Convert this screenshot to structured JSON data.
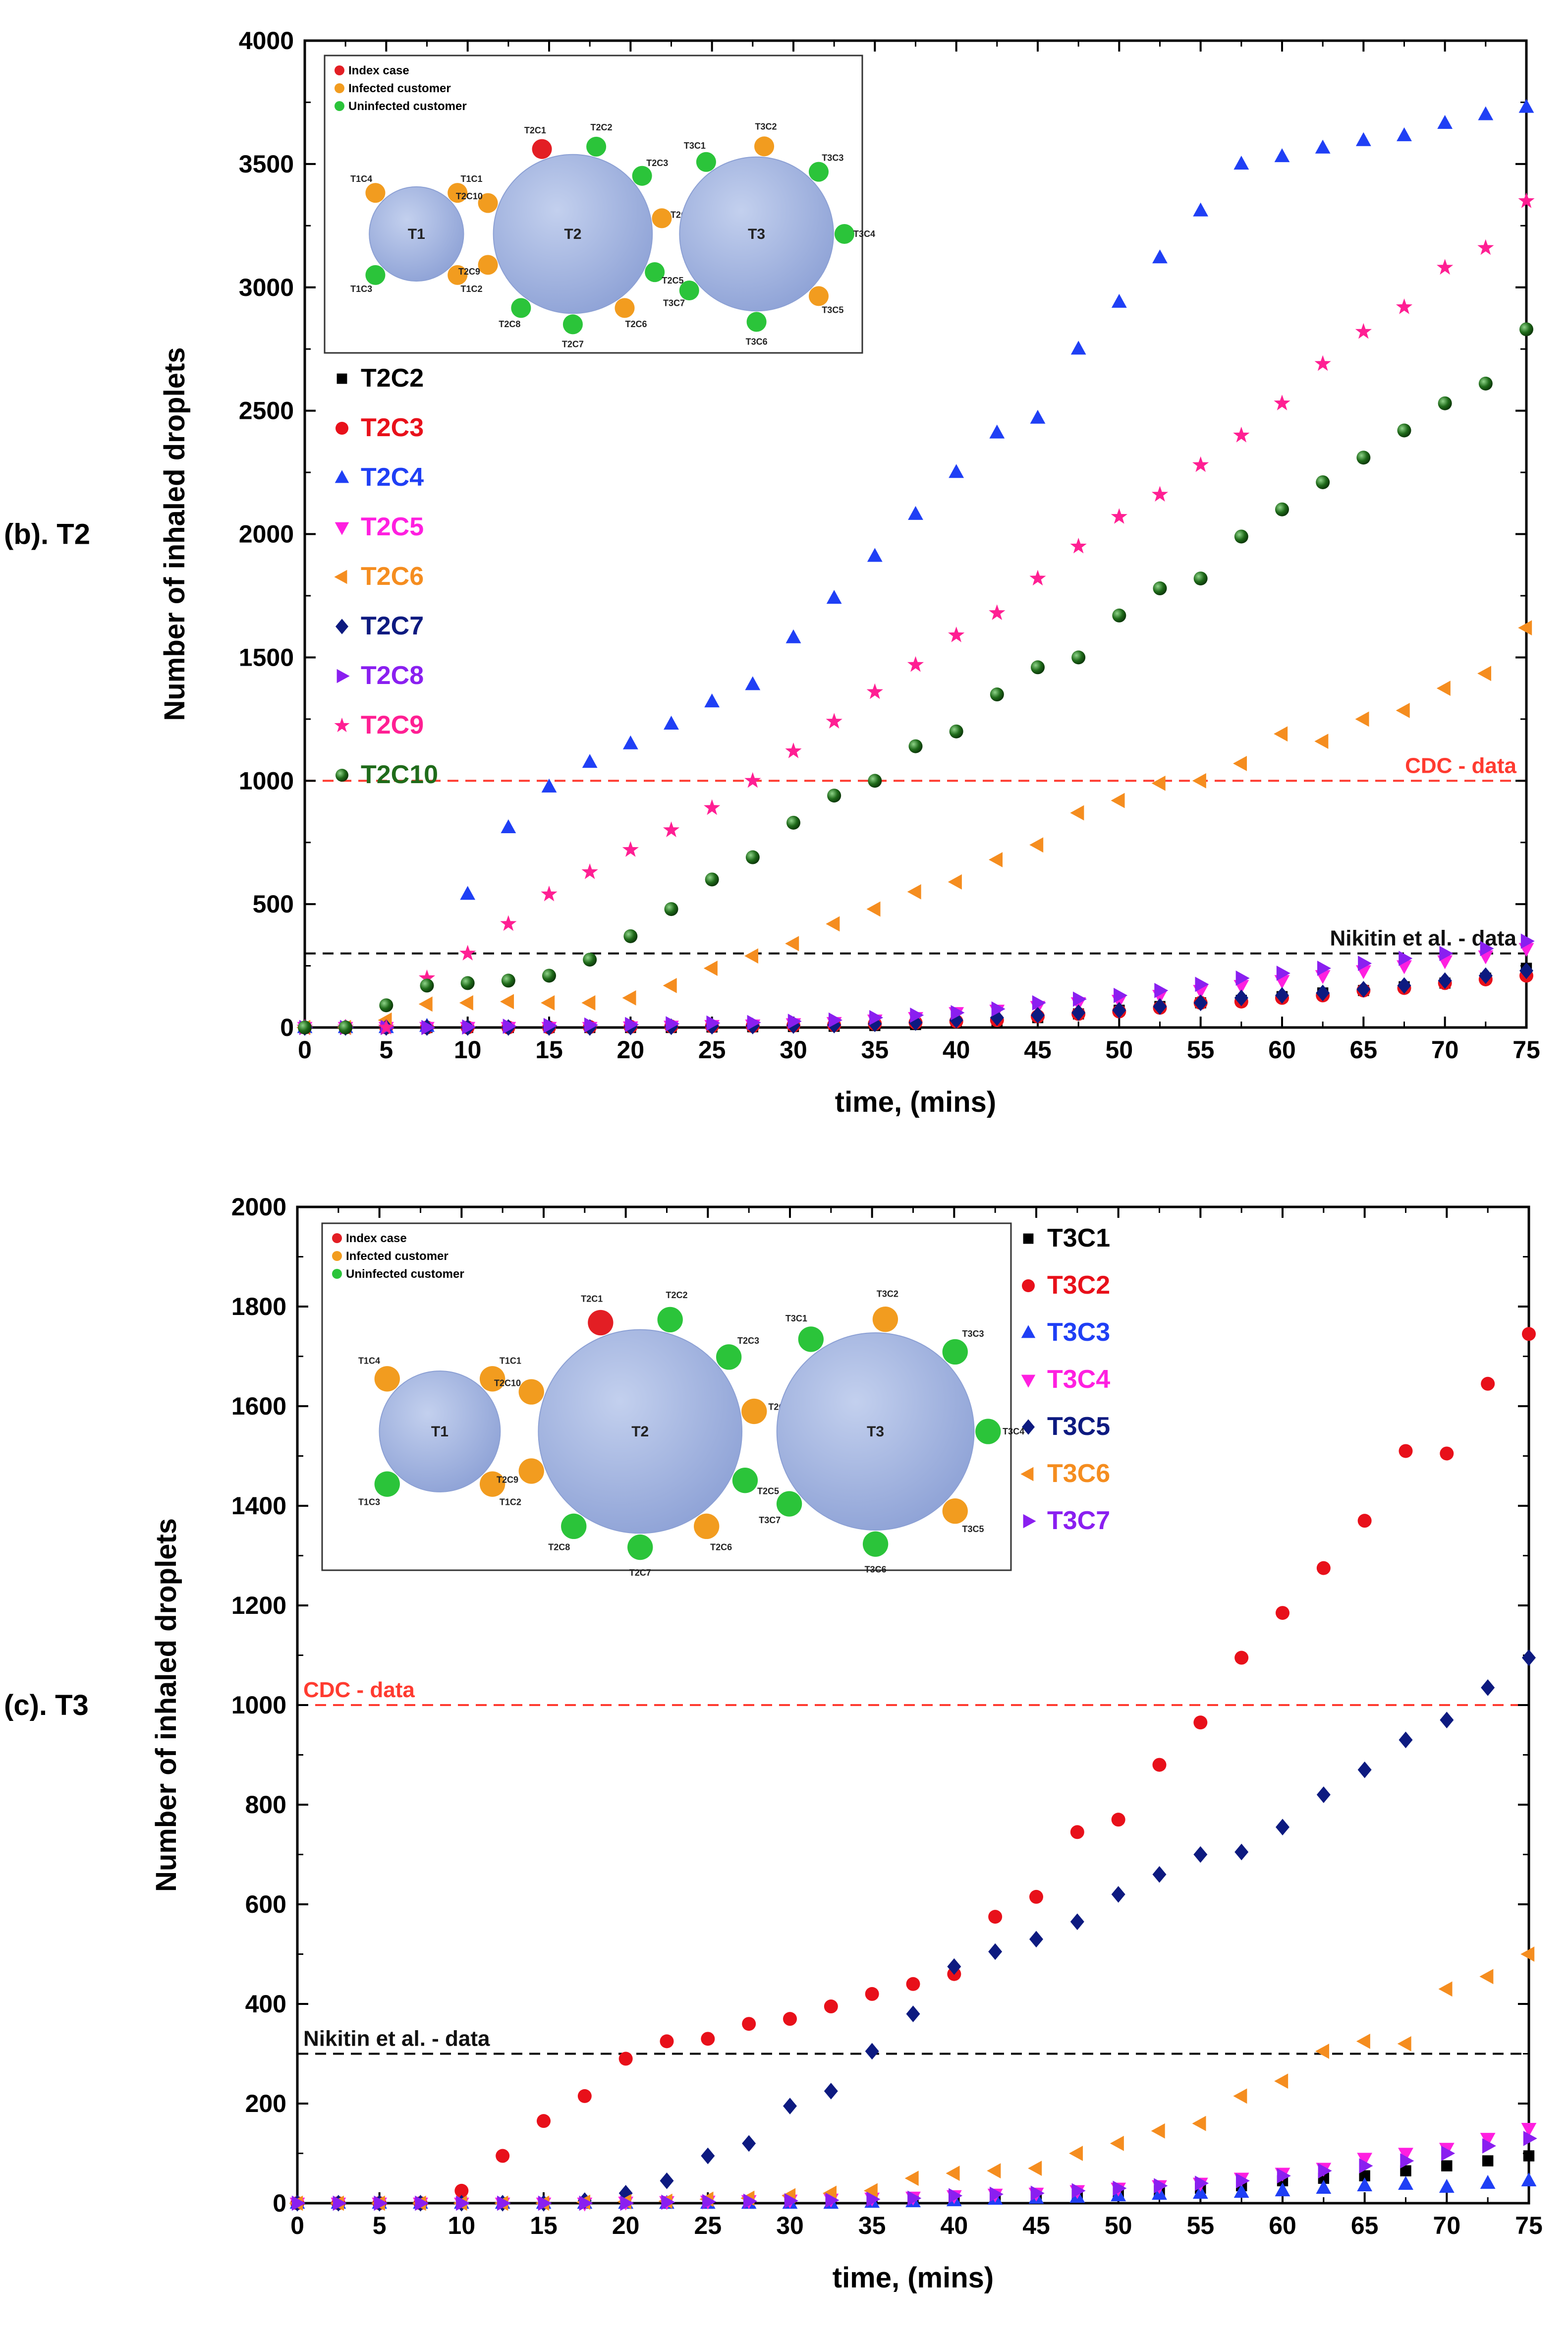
{
  "figure": {
    "xlabel": "time, (mins)",
    "ylabel": "Number of inhaled droplets"
  },
  "inset": {
    "legend": [
      {
        "label": "Index case",
        "color": "#e31e24"
      },
      {
        "label": "Infected customer",
        "color": "#f29c1f"
      },
      {
        "label": "Uninfected customer",
        "color": "#2bc43a"
      }
    ],
    "tables": [
      {
        "name": "T1",
        "seats": [
          {
            "label": "T1C4",
            "status": "infected"
          },
          {
            "label": "T1C1",
            "status": "infected"
          },
          {
            "label": "T1C3",
            "status": "uninfected"
          },
          {
            "label": "T1C2",
            "status": "infected"
          }
        ]
      },
      {
        "name": "T2",
        "seats": [
          {
            "label": "T2C1",
            "status": "index"
          },
          {
            "label": "T2C2",
            "status": "uninfected"
          },
          {
            "label": "T2C3",
            "status": "uninfected"
          },
          {
            "label": "T2C4",
            "status": "infected"
          },
          {
            "label": "T2C5",
            "status": "uninfected"
          },
          {
            "label": "T2C6",
            "status": "infected"
          },
          {
            "label": "T2C7",
            "status": "uninfected"
          },
          {
            "label": "T2C8",
            "status": "uninfected"
          },
          {
            "label": "T2C9",
            "status": "infected"
          },
          {
            "label": "T2C10",
            "status": "infected"
          }
        ]
      },
      {
        "name": "T3",
        "seats": [
          {
            "label": "T3C1",
            "status": "uninfected"
          },
          {
            "label": "T3C2",
            "status": "infected"
          },
          {
            "label": "T3C3",
            "status": "uninfected"
          },
          {
            "label": "T3C4",
            "status": "uninfected"
          },
          {
            "label": "T3C5",
            "status": "infected"
          },
          {
            "label": "T3C6",
            "status": "uninfected"
          },
          {
            "label": "T3C7",
            "status": "uninfected"
          }
        ]
      }
    ]
  },
  "chart_data": [
    {
      "type": "scatter",
      "panel_label": "(b). T2",
      "xlabel": "time, (mins)",
      "ylabel": "Number of inhaled droplets",
      "xlim": [
        0,
        75
      ],
      "ylim": [
        0,
        4000
      ],
      "xticks": [
        0,
        5,
        10,
        15,
        20,
        25,
        30,
        35,
        40,
        45,
        50,
        55,
        60,
        65,
        70,
        75
      ],
      "yticks": [
        0,
        500,
        1000,
        1500,
        2000,
        2500,
        3000,
        3500,
        4000
      ],
      "x": [
        0,
        2.5,
        5,
        7.5,
        10,
        12.5,
        15,
        17.5,
        20,
        22.5,
        25,
        27.5,
        30,
        32.5,
        35,
        37.5,
        40,
        42.5,
        45,
        47.5,
        50,
        52.5,
        55,
        57.5,
        60,
        62.5,
        65,
        67.5,
        70,
        72.5,
        75
      ],
      "reference_lines": [
        {
          "label": "CDC - data",
          "y": 1000,
          "color": "#ff3b30",
          "label_position": "right"
        },
        {
          "label": "Nikitin et al. - data",
          "y": 300,
          "color": "#000000",
          "label_position": "right"
        }
      ],
      "series": [
        {
          "name": "T2C2",
          "color": "#000000",
          "marker": "square",
          "values": [
            0,
            0,
            0,
            0,
            0,
            0,
            0,
            0,
            0,
            0,
            2,
            3,
            4,
            5,
            8,
            12,
            18,
            25,
            40,
            55,
            70,
            85,
            100,
            110,
            125,
            140,
            150,
            165,
            180,
            200,
            240
          ]
        },
        {
          "name": "T2C3",
          "color": "#e8101a",
          "marker": "circle",
          "values": [
            0,
            0,
            0,
            0,
            0,
            0,
            0,
            2,
            3,
            4,
            5,
            6,
            8,
            10,
            15,
            20,
            25,
            30,
            45,
            55,
            65,
            80,
            100,
            105,
            120,
            130,
            150,
            160,
            180,
            195,
            210
          ]
        },
        {
          "name": "T2C4",
          "color": "#1f3ff5",
          "marker": "triangle-up",
          "values": [
            0,
            0,
            0,
            5,
            540,
            810,
            975,
            1075,
            1150,
            1230,
            1320,
            1390,
            1580,
            1740,
            1910,
            2080,
            2250,
            2410,
            2470,
            2750,
            2940,
            3120,
            3310,
            3500,
            3530,
            3565,
            3595,
            3615,
            3665,
            3700,
            3730
          ]
        },
        {
          "name": "T2C5",
          "color": "#ff1fe0",
          "marker": "triangle-down",
          "values": [
            0,
            0,
            0,
            0,
            0,
            0,
            0,
            0,
            2,
            5,
            8,
            10,
            15,
            20,
            30,
            40,
            60,
            70,
            85,
            100,
            110,
            130,
            150,
            170,
            190,
            210,
            230,
            250,
            270,
            290,
            320
          ]
        },
        {
          "name": "T2C6",
          "color": "#f58d1f",
          "marker": "triangle-left",
          "values": [
            0,
            0,
            30,
            95,
            100,
            105,
            100,
            100,
            120,
            170,
            240,
            290,
            340,
            420,
            480,
            550,
            590,
            680,
            740,
            870,
            920,
            990,
            1000,
            1070,
            1190,
            1160,
            1250,
            1285,
            1375,
            1435,
            1620
          ]
        },
        {
          "name": "T2C7",
          "color": "#0d1a80",
          "marker": "diamond",
          "values": [
            0,
            0,
            0,
            0,
            0,
            0,
            0,
            0,
            2,
            3,
            5,
            6,
            8,
            10,
            15,
            20,
            30,
            40,
            50,
            60,
            70,
            85,
            100,
            120,
            130,
            140,
            155,
            170,
            190,
            210,
            230
          ]
        },
        {
          "name": "T2C8",
          "color": "#8a1ff0",
          "marker": "triangle-right",
          "values": [
            0,
            0,
            0,
            0,
            2,
            5,
            8,
            10,
            12,
            15,
            18,
            20,
            25,
            30,
            40,
            50,
            60,
            75,
            100,
            115,
            130,
            150,
            175,
            200,
            220,
            240,
            260,
            280,
            300,
            320,
            350
          ]
        },
        {
          "name": "T2C9",
          "color": "#ff1f93",
          "marker": "star",
          "values": [
            0,
            0,
            0,
            200,
            300,
            420,
            540,
            630,
            720,
            800,
            890,
            1000,
            1120,
            1240,
            1360,
            1470,
            1590,
            1680,
            1820,
            1950,
            2070,
            2160,
            2280,
            2400,
            2530,
            2690,
            2820,
            2920,
            3080,
            3160,
            3350
          ]
        },
        {
          "name": "T2C10",
          "color": "#1f6b1a",
          "marker": "sphere",
          "values": [
            0,
            0,
            90,
            170,
            180,
            190,
            210,
            275,
            370,
            480,
            600,
            690,
            830,
            940,
            1000,
            1140,
            1200,
            1350,
            1460,
            1500,
            1670,
            1780,
            1820,
            1990,
            2100,
            2210,
            2310,
            2420,
            2530,
            2610,
            2830
          ]
        }
      ]
    },
    {
      "type": "scatter",
      "panel_label": "(c). T3",
      "xlabel": "time, (mins)",
      "ylabel": "Number of inhaled droplets",
      "xlim": [
        0,
        75
      ],
      "ylim": [
        0,
        2000
      ],
      "xticks": [
        0,
        5,
        10,
        15,
        20,
        25,
        30,
        35,
        40,
        45,
        50,
        55,
        60,
        65,
        70,
        75
      ],
      "yticks": [
        0,
        200,
        400,
        600,
        800,
        1000,
        1200,
        1400,
        1600,
        1800,
        2000
      ],
      "x": [
        0,
        2.5,
        5,
        7.5,
        10,
        12.5,
        15,
        17.5,
        20,
        22.5,
        25,
        27.5,
        30,
        32.5,
        35,
        37.5,
        40,
        42.5,
        45,
        47.5,
        50,
        52.5,
        55,
        57.5,
        60,
        62.5,
        65,
        67.5,
        70,
        72.5,
        75
      ],
      "reference_lines": [
        {
          "label": "CDC - data",
          "y": 1000,
          "color": "#ff3b30",
          "label_position": "left"
        },
        {
          "label": "Nikitin et al. - data",
          "y": 300,
          "color": "#000000",
          "label_position": "left"
        }
      ],
      "series": [
        {
          "name": "T3C1",
          "color": "#000000",
          "marker": "square",
          "values": [
            0,
            0,
            0,
            0,
            0,
            0,
            0,
            0,
            0,
            0,
            0,
            0,
            2,
            3,
            5,
            7,
            10,
            12,
            14,
            16,
            20,
            25,
            30,
            35,
            45,
            50,
            55,
            65,
            75,
            85,
            95
          ]
        },
        {
          "name": "T3C2",
          "color": "#e8101a",
          "marker": "circle",
          "values": [
            0,
            0,
            0,
            0,
            25,
            95,
            165,
            215,
            290,
            325,
            330,
            360,
            370,
            395,
            420,
            440,
            460,
            575,
            615,
            745,
            770,
            880,
            965,
            1095,
            1185,
            1275,
            1370,
            1510,
            1505,
            1645,
            1745
          ]
        },
        {
          "name": "T3C3",
          "color": "#1f3ff5",
          "marker": "triangle-up",
          "values": [
            0,
            0,
            0,
            0,
            0,
            0,
            0,
            0,
            0,
            0,
            0,
            0,
            0,
            0,
            2,
            3,
            5,
            8,
            10,
            12,
            15,
            18,
            20,
            22,
            25,
            30,
            35,
            38,
            32,
            40,
            45
          ]
        },
        {
          "name": "T3C4",
          "color": "#ff1fe0",
          "marker": "triangle-down",
          "values": [
            0,
            0,
            0,
            0,
            0,
            0,
            0,
            0,
            2,
            3,
            4,
            5,
            6,
            8,
            10,
            12,
            15,
            18,
            20,
            25,
            30,
            35,
            40,
            50,
            60,
            70,
            90,
            100,
            110,
            130,
            150
          ]
        },
        {
          "name": "T3C5",
          "color": "#0d1a80",
          "marker": "diamond",
          "values": [
            0,
            0,
            0,
            0,
            0,
            0,
            0,
            5,
            20,
            45,
            95,
            120,
            195,
            225,
            305,
            380,
            475,
            505,
            530,
            565,
            620,
            660,
            700,
            705,
            755,
            820,
            870,
            930,
            970,
            1035,
            1095
          ]
        },
        {
          "name": "T3C6",
          "color": "#f58d1f",
          "marker": "triangle-left",
          "values": [
            0,
            0,
            0,
            0,
            0,
            0,
            0,
            2,
            3,
            4,
            8,
            10,
            15,
            20,
            25,
            50,
            60,
            65,
            70,
            100,
            120,
            145,
            160,
            215,
            245,
            305,
            325,
            320,
            430,
            455,
            500
          ]
        },
        {
          "name": "T3C7",
          "color": "#8a1ff0",
          "marker": "triangle-right",
          "values": [
            0,
            0,
            0,
            0,
            0,
            0,
            0,
            0,
            0,
            2,
            3,
            4,
            5,
            6,
            8,
            10,
            15,
            18,
            20,
            25,
            30,
            35,
            40,
            45,
            55,
            65,
            75,
            85,
            100,
            115,
            130
          ]
        }
      ]
    }
  ]
}
